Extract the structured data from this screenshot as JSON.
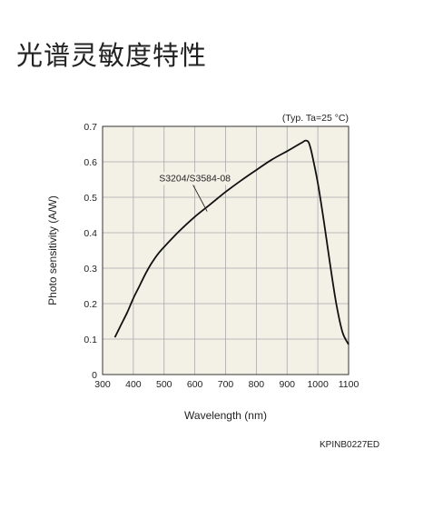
{
  "page": {
    "title": "光谱灵敏度特性",
    "figure_code": "KPINB0227ED"
  },
  "chart_data": {
    "type": "line",
    "title": "",
    "condition_note": "(Typ. Ta=25 °C)",
    "xlabel": "Wavelength (nm)",
    "ylabel": "Photo sensitivity (A/W)",
    "xlim": [
      300,
      1100
    ],
    "ylim": [
      0,
      0.7
    ],
    "xticks": [
      300,
      400,
      500,
      600,
      700,
      800,
      900,
      1000,
      1100
    ],
    "yticks": [
      0,
      0.1,
      0.2,
      0.3,
      0.4,
      0.5,
      0.6,
      0.7
    ],
    "ytick_labels": [
      "0",
      "0.1",
      "0.2",
      "0.3",
      "0.4",
      "0.5",
      "0.6",
      "0.7"
    ],
    "grid": true,
    "series": [
      {
        "name": "S3204/S3584-08",
        "color": "#111111",
        "x": [
          340,
          360,
          380,
          400,
          420,
          440,
          460,
          480,
          500,
          550,
          600,
          650,
          700,
          750,
          800,
          850,
          900,
          930,
          950,
          960,
          970,
          980,
          1000,
          1020,
          1040,
          1060,
          1080,
          1100
        ],
        "y": [
          0.105,
          0.14,
          0.175,
          0.215,
          0.25,
          0.285,
          0.315,
          0.34,
          0.36,
          0.405,
          0.445,
          0.48,
          0.515,
          0.547,
          0.577,
          0.606,
          0.63,
          0.645,
          0.655,
          0.66,
          0.655,
          0.625,
          0.54,
          0.43,
          0.31,
          0.2,
          0.12,
          0.085
        ]
      }
    ],
    "annotations": [
      {
        "text": "S3204/S3584-08",
        "target": [
          640,
          0.46
        ],
        "anchor": [
          600,
          0.545
        ]
      }
    ]
  }
}
